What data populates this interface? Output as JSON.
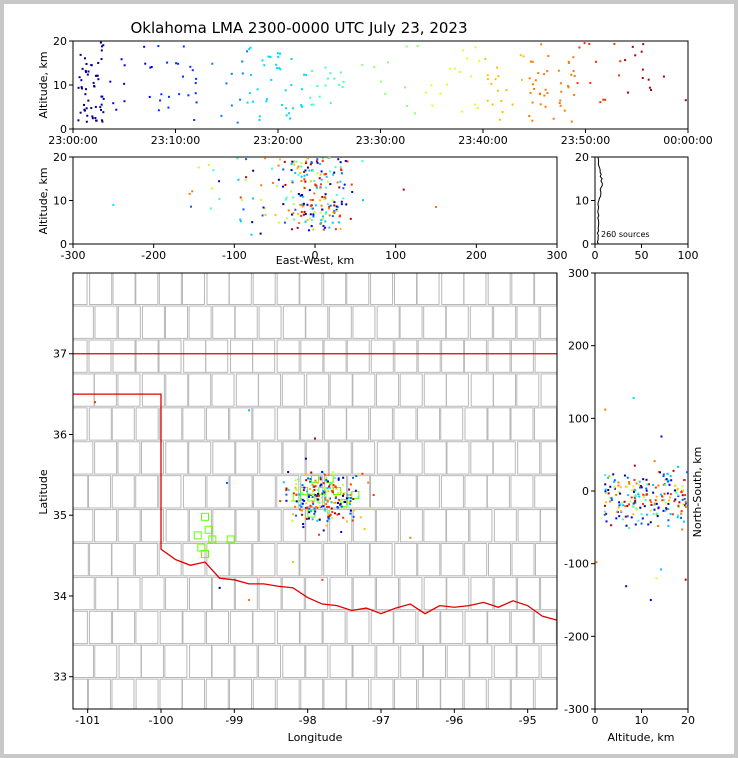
{
  "chart_data": [
    {
      "panel": "time-altitude",
      "type": "scatter",
      "title": "Oklahoma LMA 2300-0000 UTC July 23, 2023",
      "xlabel": "",
      "ylabel": "Altitude, km",
      "xlim": [
        "23:00:00",
        "00:00:00"
      ],
      "ylim": [
        0,
        20
      ],
      "xticks": [
        "23:00:00",
        "23:10:00",
        "23:20:00",
        "23:30:00",
        "23:40:00",
        "23:50:00",
        "00:00:00"
      ],
      "yticks": [
        "0",
        "10",
        "20"
      ],
      "color_by": "time",
      "clusters": [
        {
          "t_min": [
            0.5,
            3.0
          ],
          "alt": [
            1,
            20
          ],
          "count": 55,
          "color": "#00008f"
        },
        {
          "t_min": [
            3.5,
            8.0
          ],
          "alt": [
            4,
            19
          ],
          "count": 12,
          "color": "#0000ff"
        },
        {
          "t_min": [
            8.0,
            12.5
          ],
          "alt": [
            2,
            20
          ],
          "count": 20,
          "color": "#0030ff"
        },
        {
          "t_min": [
            13.5,
            17.0
          ],
          "alt": [
            1,
            19
          ],
          "count": 10,
          "color": "#0080ff"
        },
        {
          "t_min": [
            17.0,
            23.0
          ],
          "alt": [
            2,
            19
          ],
          "count": 38,
          "color": "#00d8ff"
        },
        {
          "t_min": [
            23.0,
            27.0
          ],
          "alt": [
            5,
            16
          ],
          "count": 16,
          "color": "#40ffc0"
        },
        {
          "t_min": [
            28.0,
            34.0
          ],
          "alt": [
            3,
            19
          ],
          "count": 10,
          "color": "#90ff70"
        },
        {
          "t_min": [
            34.0,
            40.0
          ],
          "alt": [
            3,
            19
          ],
          "count": 16,
          "color": "#e0ff20"
        },
        {
          "t_min": [
            40.0,
            44.0
          ],
          "alt": [
            1,
            19
          ],
          "count": 18,
          "color": "#ffc000"
        },
        {
          "t_min": [
            44.5,
            49.0
          ],
          "alt": [
            1,
            20
          ],
          "count": 40,
          "color": "#ff7800"
        },
        {
          "t_min": [
            49.0,
            53.5
          ],
          "alt": [
            4,
            20
          ],
          "count": 12,
          "color": "#ff3000"
        },
        {
          "t_min": [
            53.5,
            60.0
          ],
          "alt": [
            3,
            20
          ],
          "count": 13,
          "color": "#b00000"
        }
      ]
    },
    {
      "panel": "ew-altitude",
      "type": "scatter",
      "xlabel": "East-West, km",
      "ylabel": "Altitude, km",
      "xlim": [
        -300,
        300
      ],
      "ylim": [
        0,
        20
      ],
      "xticks": [
        "-300",
        "-200",
        "-100",
        "0",
        "100",
        "200",
        "300"
      ],
      "yticks": [
        "0",
        "10",
        "20"
      ],
      "note": "most sources between -60 and 50 km, scattered outliers to -250 km and +150 km"
    },
    {
      "panel": "altitude-histogram",
      "type": "bar",
      "xlim": [
        0,
        100
      ],
      "ylim": [
        0,
        20
      ],
      "xticks": [
        "0",
        "50",
        "100"
      ],
      "yticks": [
        "0",
        "10",
        "20"
      ],
      "annotation": "260 sources"
    },
    {
      "panel": "plan-view",
      "type": "scatter",
      "xlabel": "Longitude",
      "ylabel": "Latitude",
      "xlim": [
        -101.2,
        -94.6
      ],
      "ylim": [
        32.6,
        38
      ],
      "xticks": [
        "-101",
        "-100",
        "-99",
        "-98",
        "-97",
        "-96",
        "-95"
      ],
      "yticks": [
        "33",
        "34",
        "35",
        "36",
        "37"
      ],
      "stations": [
        {
          "lon": -97.9,
          "lat": 35.45
        },
        {
          "lon": -97.7,
          "lat": 35.45
        },
        {
          "lon": -98.05,
          "lat": 35.3
        },
        {
          "lon": -97.8,
          "lat": 35.3
        },
        {
          "lon": -97.6,
          "lat": 35.3
        },
        {
          "lon": -98.15,
          "lat": 35.22
        },
        {
          "lon": -97.95,
          "lat": 35.22
        },
        {
          "lon": -97.5,
          "lat": 35.15
        },
        {
          "lon": -97.35,
          "lat": 35.25
        },
        {
          "lon": -97.95,
          "lat": 35.02
        },
        {
          "lon": -99.4,
          "lat": 34.98
        },
        {
          "lon": -99.5,
          "lat": 34.75
        },
        {
          "lon": -99.35,
          "lat": 34.82
        },
        {
          "lon": -99.3,
          "lat": 34.7
        },
        {
          "lon": -99.05,
          "lat": 34.7
        },
        {
          "lon": -99.45,
          "lat": 34.6
        },
        {
          "lon": -99.4,
          "lat": 34.52
        }
      ]
    },
    {
      "panel": "altitude-ns",
      "type": "scatter",
      "xlabel": "Altitude, km",
      "ylabel": "North-South, km",
      "xlim": [
        0,
        20
      ],
      "ylim": [
        -300,
        300
      ],
      "xticks": [
        "0",
        "10",
        "20"
      ],
      "yticks": [
        "-300",
        "-200",
        "-100",
        "0",
        "100",
        "200",
        "300"
      ]
    }
  ]
}
